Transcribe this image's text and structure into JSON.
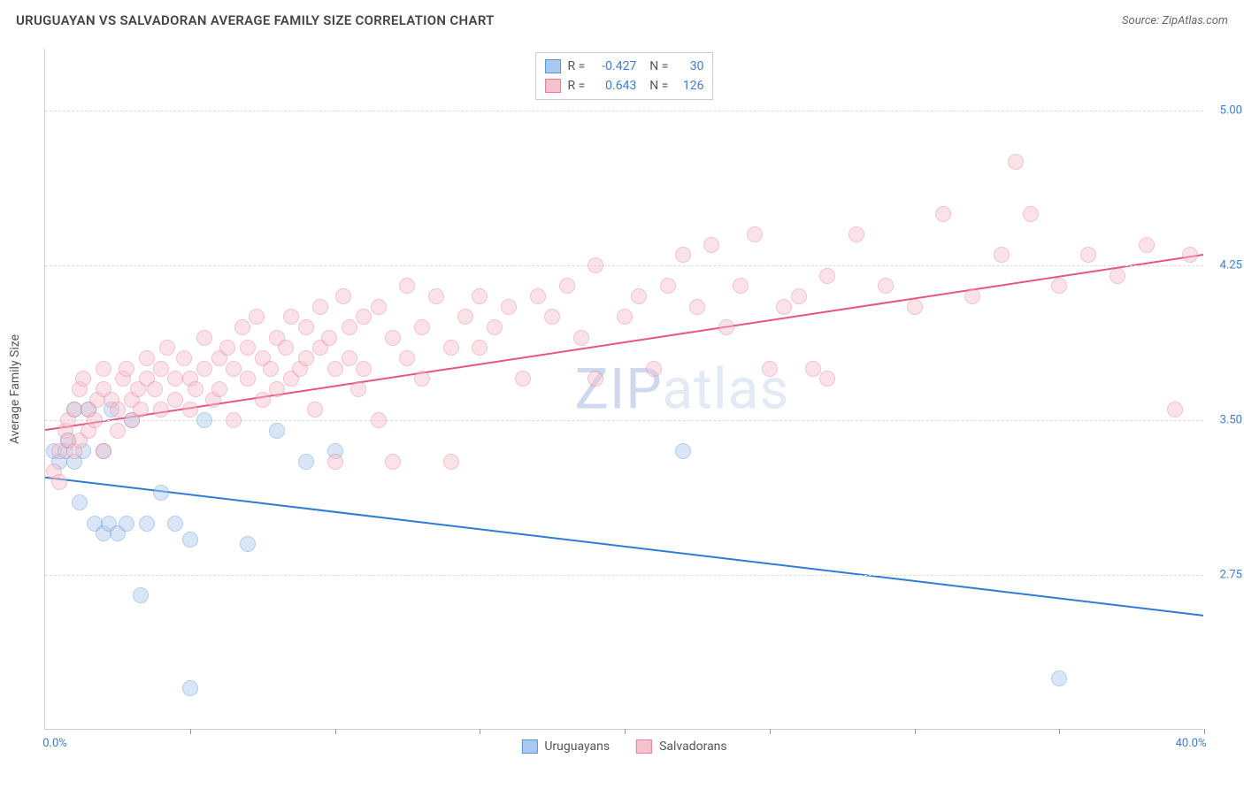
{
  "title": "URUGUAYAN VS SALVADORAN AVERAGE FAMILY SIZE CORRELATION CHART",
  "source": "Source: ZipAtlas.com",
  "watermark": "ZIPatlas",
  "y_axis_label": "Average Family Size",
  "chart": {
    "type": "scatter",
    "xlim": [
      0,
      40
    ],
    "ylim": [
      2.0,
      5.3
    ],
    "x_tick_labels": {
      "min": "0.0%",
      "max": "40.0%"
    },
    "y_ticks": [
      2.75,
      3.5,
      4.25,
      5.0
    ],
    "x_minor_ticks": [
      5,
      10,
      15,
      20,
      25,
      30,
      35,
      40
    ],
    "background_color": "#ffffff",
    "grid_color": "#dddddd",
    "marker_radius": 9,
    "marker_opacity": 0.45,
    "line_width": 2,
    "series": [
      {
        "name": "Uruguayans",
        "color_fill": "#a9c9f0",
        "color_border": "#5a94d8",
        "line_color": "#2f7cd6",
        "trend": {
          "x1": 0,
          "y1": 3.22,
          "x2": 40,
          "y2": 2.55
        },
        "R": "-0.427",
        "N": "30",
        "points": [
          [
            0.3,
            3.35
          ],
          [
            0.5,
            3.3
          ],
          [
            0.7,
            3.35
          ],
          [
            0.8,
            3.4
          ],
          [
            1.0,
            3.55
          ],
          [
            1.0,
            3.3
          ],
          [
            1.2,
            3.1
          ],
          [
            1.3,
            3.35
          ],
          [
            1.5,
            3.55
          ],
          [
            1.7,
            3.0
          ],
          [
            2.0,
            3.35
          ],
          [
            2.0,
            2.95
          ],
          [
            2.2,
            3.0
          ],
          [
            2.3,
            3.55
          ],
          [
            2.5,
            2.95
          ],
          [
            2.8,
            3.0
          ],
          [
            3.0,
            3.5
          ],
          [
            3.3,
            2.65
          ],
          [
            3.5,
            3.0
          ],
          [
            4.0,
            3.15
          ],
          [
            4.5,
            3.0
          ],
          [
            5.0,
            2.92
          ],
          [
            5.5,
            3.5
          ],
          [
            7.0,
            2.9
          ],
          [
            8.0,
            3.45
          ],
          [
            9.0,
            3.3
          ],
          [
            10.0,
            3.35
          ],
          [
            22.0,
            3.35
          ],
          [
            5.0,
            2.2
          ],
          [
            35.0,
            2.25
          ]
        ]
      },
      {
        "name": "Salvadorans",
        "color_fill": "#f4c1cd",
        "color_border": "#e77a9a",
        "line_color": "#e8557f",
        "trend": {
          "x1": 0,
          "y1": 3.45,
          "x2": 40,
          "y2": 4.3
        },
        "R": "0.643",
        "N": "126",
        "points": [
          [
            0.3,
            3.25
          ],
          [
            0.5,
            3.2
          ],
          [
            0.5,
            3.35
          ],
          [
            0.7,
            3.45
          ],
          [
            0.8,
            3.4
          ],
          [
            0.8,
            3.5
          ],
          [
            1.0,
            3.35
          ],
          [
            1.0,
            3.55
          ],
          [
            1.2,
            3.4
          ],
          [
            1.2,
            3.65
          ],
          [
            1.3,
            3.7
          ],
          [
            1.5,
            3.45
          ],
          [
            1.5,
            3.55
          ],
          [
            1.7,
            3.5
          ],
          [
            1.8,
            3.6
          ],
          [
            2.0,
            3.35
          ],
          [
            2.0,
            3.65
          ],
          [
            2.0,
            3.75
          ],
          [
            2.3,
            3.6
          ],
          [
            2.5,
            3.45
          ],
          [
            2.5,
            3.55
          ],
          [
            2.7,
            3.7
          ],
          [
            2.8,
            3.75
          ],
          [
            3.0,
            3.5
          ],
          [
            3.0,
            3.6
          ],
          [
            3.2,
            3.65
          ],
          [
            3.3,
            3.55
          ],
          [
            3.5,
            3.7
          ],
          [
            3.5,
            3.8
          ],
          [
            3.8,
            3.65
          ],
          [
            4.0,
            3.55
          ],
          [
            4.0,
            3.75
          ],
          [
            4.2,
            3.85
          ],
          [
            4.5,
            3.7
          ],
          [
            4.5,
            3.6
          ],
          [
            4.8,
            3.8
          ],
          [
            5.0,
            3.55
          ],
          [
            5.0,
            3.7
          ],
          [
            5.2,
            3.65
          ],
          [
            5.5,
            3.75
          ],
          [
            5.5,
            3.9
          ],
          [
            5.8,
            3.6
          ],
          [
            6.0,
            3.65
          ],
          [
            6.0,
            3.8
          ],
          [
            6.3,
            3.85
          ],
          [
            6.5,
            3.5
          ],
          [
            6.5,
            3.75
          ],
          [
            6.8,
            3.95
          ],
          [
            7.0,
            3.7
          ],
          [
            7.0,
            3.85
          ],
          [
            7.3,
            4.0
          ],
          [
            7.5,
            3.6
          ],
          [
            7.5,
            3.8
          ],
          [
            7.8,
            3.75
          ],
          [
            8.0,
            3.65
          ],
          [
            8.0,
            3.9
          ],
          [
            8.3,
            3.85
          ],
          [
            8.5,
            3.7
          ],
          [
            8.5,
            4.0
          ],
          [
            8.8,
            3.75
          ],
          [
            9.0,
            3.8
          ],
          [
            9.0,
            3.95
          ],
          [
            9.3,
            3.55
          ],
          [
            9.5,
            3.85
          ],
          [
            9.5,
            4.05
          ],
          [
            9.8,
            3.9
          ],
          [
            10.0,
            3.75
          ],
          [
            10.0,
            3.3
          ],
          [
            10.3,
            4.1
          ],
          [
            10.5,
            3.8
          ],
          [
            10.5,
            3.95
          ],
          [
            10.8,
            3.65
          ],
          [
            11.0,
            4.0
          ],
          [
            11.0,
            3.75
          ],
          [
            11.5,
            4.05
          ],
          [
            11.5,
            3.5
          ],
          [
            12.0,
            3.9
          ],
          [
            12.0,
            3.3
          ],
          [
            12.5,
            4.15
          ],
          [
            12.5,
            3.8
          ],
          [
            13.0,
            3.95
          ],
          [
            13.0,
            3.7
          ],
          [
            13.5,
            4.1
          ],
          [
            14.0,
            3.85
          ],
          [
            14.0,
            3.3
          ],
          [
            14.5,
            4.0
          ],
          [
            15.0,
            4.1
          ],
          [
            15.0,
            3.85
          ],
          [
            15.5,
            3.95
          ],
          [
            16.0,
            4.05
          ],
          [
            16.5,
            3.7
          ],
          [
            17.0,
            4.1
          ],
          [
            17.5,
            4.0
          ],
          [
            18.0,
            4.15
          ],
          [
            18.5,
            3.9
          ],
          [
            19.0,
            4.25
          ],
          [
            19.0,
            3.7
          ],
          [
            20.0,
            4.0
          ],
          [
            20.5,
            4.1
          ],
          [
            21.0,
            3.75
          ],
          [
            21.5,
            4.15
          ],
          [
            22.0,
            4.3
          ],
          [
            22.5,
            4.05
          ],
          [
            23.0,
            4.35
          ],
          [
            23.5,
            3.95
          ],
          [
            24.0,
            4.15
          ],
          [
            24.5,
            4.4
          ],
          [
            25.0,
            3.75
          ],
          [
            25.5,
            4.05
          ],
          [
            26.0,
            4.1
          ],
          [
            26.5,
            3.75
          ],
          [
            27.0,
            4.2
          ],
          [
            27.0,
            3.7
          ],
          [
            28.0,
            4.4
          ],
          [
            29.0,
            4.15
          ],
          [
            30.0,
            4.05
          ],
          [
            31.0,
            4.5
          ],
          [
            32.0,
            4.1
          ],
          [
            33.0,
            4.3
          ],
          [
            33.5,
            4.75
          ],
          [
            34.0,
            4.5
          ],
          [
            35.0,
            4.15
          ],
          [
            36.0,
            4.3
          ],
          [
            37.0,
            4.2
          ],
          [
            38.0,
            4.35
          ],
          [
            39.5,
            4.3
          ],
          [
            39.0,
            3.55
          ]
        ]
      }
    ]
  }
}
